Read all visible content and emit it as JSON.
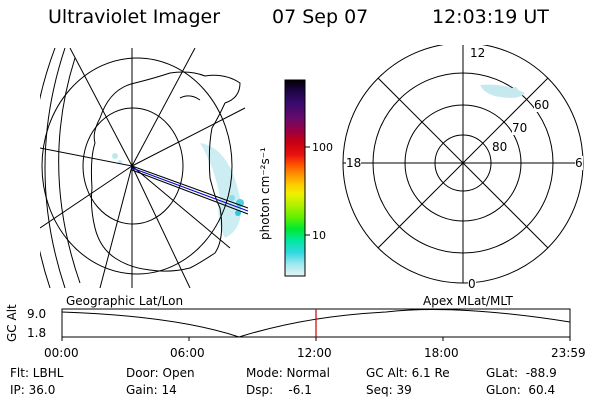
{
  "header": {
    "title": "Ultraviolet Imager",
    "date": "07 Sep 07",
    "time": "12:03:19 UT"
  },
  "colorbar": {
    "unit_label": "photon cm⁻²s⁻¹",
    "tick_100": "100",
    "tick_10": "10",
    "colors": [
      "#000000",
      "#1b0440",
      "#3a0a70",
      "#6a0a6a",
      "#9a0040",
      "#c80010",
      "#e81010",
      "#ff5000",
      "#ff9000",
      "#ffc800",
      "#f0f000",
      "#b0f000",
      "#60f000",
      "#00e830",
      "#00e8a0",
      "#30d8e0",
      "#a0e8f0",
      "#e8f4f4"
    ]
  },
  "polar_map": {
    "label_12": "12",
    "label_18": "18",
    "label_6": "6",
    "label_0": "0",
    "ring_60": "60",
    "ring_70": "70",
    "ring_80": "80"
  },
  "panel_labels": {
    "left": "Geographic Lat/Lon",
    "right": "Apex MLat/MLT"
  },
  "altitude_plot": {
    "ylabel": "GC Alt",
    "ytick_top": "9.0",
    "ytick_bottom": "1.8",
    "xticks": [
      "00:00",
      "06:00",
      "12:00",
      "18:00",
      "23:59"
    ],
    "marker_color": "#cc0000"
  },
  "footer": {
    "filter": "Flt: LBHL",
    "ip": "IP: 36.0",
    "door": "Door: Open",
    "gain": "Gain: 14",
    "mode": "Mode: Normal",
    "dsp": "Dsp:    -6.1",
    "gc_alt": "GC Alt: 6.1 Re",
    "seq": "Seq: 39",
    "glat": "GLat:  -88.9",
    "glon": "GLon:  60.4"
  }
}
